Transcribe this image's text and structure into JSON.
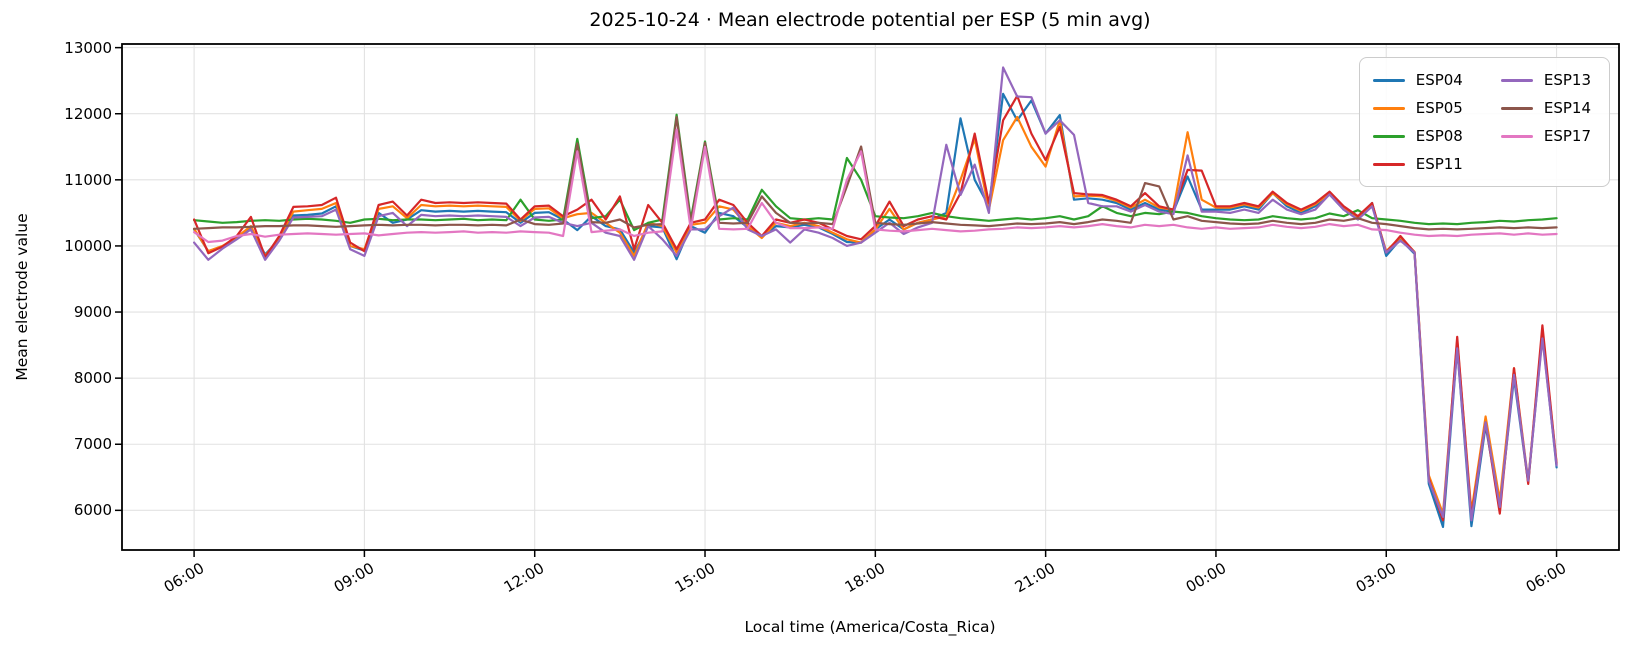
{
  "figure": {
    "title": "2025-10-24 · Mean electrode potential per ESP (5 min avg)",
    "xlabel": "Local time (America/Costa_Rica)",
    "ylabel": "Mean electrode value"
  },
  "chart_data": {
    "type": "line",
    "title": "2025-10-24 · Mean electrode potential per ESP (5 min avg)",
    "xlabel": "Local time (America/Costa_Rica)",
    "ylabel": "Mean electrode value",
    "grid": true,
    "legend_position": "upper right",
    "legend_columns": 2,
    "x_unit": "hours after 06:00 local",
    "x_start_hour": 0,
    "x_step_hours": 0.25,
    "xlim": [
      -1.27,
      25.1
    ],
    "ylim": [
      5400,
      13055
    ],
    "x_ticks": [
      {
        "t": 0,
        "label": "06:00"
      },
      {
        "t": 3,
        "label": "09:00"
      },
      {
        "t": 6,
        "label": "12:00"
      },
      {
        "t": 9,
        "label": "15:00"
      },
      {
        "t": 12,
        "label": "18:00"
      },
      {
        "t": 15,
        "label": "21:00"
      },
      {
        "t": 18,
        "label": "00:00"
      },
      {
        "t": 21,
        "label": "03:00"
      },
      {
        "t": 24,
        "label": "06:00"
      }
    ],
    "y_ticks": [
      6000,
      7000,
      8000,
      9000,
      10000,
      11000,
      12000,
      13000
    ],
    "colors": {
      "grid": "#e2e2e2",
      "spine": "#000000",
      "text": "#000000"
    },
    "series": [
      {
        "name": "ESP04",
        "color": "#1f77b4",
        "values": [
          10250,
          9920,
          9990,
          10120,
          10280,
          9870,
          10100,
          10460,
          10470,
          10490,
          10600,
          10000,
          9930,
          10500,
          10350,
          10400,
          10540,
          10520,
          10530,
          10520,
          10530,
          10520,
          10510,
          10350,
          10500,
          10510,
          10400,
          10240,
          10450,
          10300,
          10250,
          9900,
          10300,
          10280,
          9800,
          10300,
          10200,
          10500,
          10450,
          10280,
          10140,
          10300,
          10280,
          10320,
          10280,
          10180,
          10060,
          10050,
          10250,
          10400,
          10250,
          10350,
          10400,
          10500,
          11930,
          11000,
          10600,
          12300,
          11900,
          12200,
          11700,
          11980,
          10700,
          10720,
          10700,
          10650,
          10550,
          10650,
          10550,
          10520,
          11050,
          10550,
          10550,
          10550,
          10600,
          10550,
          10800,
          10600,
          10500,
          10600,
          10780,
          10550,
          10400,
          10650,
          9850,
          10100,
          9880,
          6400,
          5750,
          8450,
          5760,
          7280,
          6050,
          8000,
          6420,
          8650,
          6650
        ]
      },
      {
        "name": "ESP05",
        "color": "#ff7f0e",
        "values": [
          10260,
          9920,
          10000,
          10130,
          10300,
          9850,
          10120,
          10520,
          10540,
          10560,
          10650,
          10000,
          9950,
          10560,
          10600,
          10420,
          10620,
          10600,
          10610,
          10600,
          10610,
          10600,
          10590,
          10380,
          10560,
          10570,
          10420,
          10480,
          10500,
          10350,
          10200,
          9850,
          10350,
          10300,
          9900,
          10320,
          10350,
          10600,
          10550,
          10300,
          10120,
          10350,
          10300,
          10350,
          10300,
          10200,
          10100,
          10050,
          10250,
          10560,
          10250,
          10350,
          10400,
          10450,
          11000,
          11620,
          10550,
          11600,
          11950,
          11500,
          11200,
          11900,
          10750,
          10760,
          10750,
          10680,
          10580,
          10700,
          10580,
          10550,
          11720,
          10700,
          10580,
          10580,
          10630,
          10580,
          10800,
          10630,
          10530,
          10630,
          10800,
          10580,
          10430,
          10620,
          9920,
          10130,
          9910,
          6530,
          5950,
          8570,
          5980,
          7420,
          6150,
          8150,
          6450,
          8700,
          6720
        ]
      },
      {
        "name": "ESP08",
        "color": "#2ca02c",
        "values": [
          10390,
          10370,
          10350,
          10360,
          10380,
          10390,
          10380,
          10400,
          10410,
          10400,
          10380,
          10350,
          10400,
          10410,
          10390,
          10400,
          10400,
          10390,
          10400,
          10410,
          10390,
          10400,
          10390,
          10700,
          10400,
          10380,
          10400,
          11620,
          10420,
          10450,
          10700,
          10240,
          10350,
          10400,
          11985,
          10400,
          11580,
          10400,
          10420,
          10400,
          10850,
          10600,
          10420,
          10400,
          10420,
          10400,
          11330,
          11000,
          10450,
          10430,
          10420,
          10450,
          10500,
          10450,
          10420,
          10400,
          10380,
          10400,
          10420,
          10400,
          10420,
          10450,
          10400,
          10450,
          10600,
          10500,
          10450,
          10500,
          10480,
          10520,
          10500,
          10450,
          10420,
          10400,
          10390,
          10400,
          10450,
          10420,
          10400,
          10420,
          10490,
          10450,
          10540,
          10420,
          10400,
          10380,
          10350,
          10330,
          10340,
          10330,
          10350,
          10360,
          10380,
          10370,
          10390,
          10400,
          10420
        ]
      },
      {
        "name": "ESP11",
        "color": "#d62728",
        "values": [
          10400,
          9890,
          9990,
          10150,
          10440,
          9830,
          10150,
          10590,
          10600,
          10620,
          10730,
          10050,
          9920,
          10620,
          10670,
          10460,
          10700,
          10650,
          10660,
          10650,
          10660,
          10650,
          10640,
          10400,
          10600,
          10610,
          10450,
          10550,
          10700,
          10400,
          10750,
          9950,
          10620,
          10350,
          9950,
          10350,
          10400,
          10700,
          10620,
          10350,
          10150,
          10400,
          10350,
          10400,
          10350,
          10250,
          10150,
          10100,
          10300,
          10670,
          10300,
          10400,
          10450,
          10400,
          10800,
          11700,
          10650,
          11900,
          12270,
          11700,
          11300,
          11800,
          10800,
          10780,
          10770,
          10700,
          10600,
          10800,
          10600,
          10550,
          11150,
          11140,
          10600,
          10600,
          10650,
          10600,
          10820,
          10650,
          10550,
          10650,
          10820,
          10600,
          10450,
          10650,
          9900,
          10150,
          9900,
          6480,
          5850,
          8625,
          5900,
          7330,
          5950,
          8150,
          6400,
          8800,
          6700
        ]
      },
      {
        "name": "ESP13",
        "color": "#9467bd",
        "values": [
          10050,
          9790,
          9960,
          10100,
          10250,
          9790,
          10080,
          10430,
          10440,
          10450,
          10550,
          9950,
          9850,
          10450,
          10500,
          10300,
          10470,
          10450,
          10460,
          10450,
          10460,
          10450,
          10440,
          10300,
          10430,
          10440,
          10350,
          10300,
          10350,
          10200,
          10150,
          9790,
          10300,
          10100,
          9850,
          10250,
          10250,
          10450,
          10580,
          10250,
          10150,
          10250,
          10050,
          10250,
          10200,
          10120,
          10000,
          10050,
          10200,
          10350,
          10180,
          10280,
          10350,
          11530,
          10770,
          11230,
          10500,
          12700,
          12260,
          12250,
          11700,
          11900,
          11680,
          10650,
          10600,
          10600,
          10520,
          10620,
          10520,
          10480,
          11370,
          10520,
          10520,
          10500,
          10550,
          10500,
          10700,
          10550,
          10480,
          10550,
          10780,
          10550,
          10400,
          10600,
          9900,
          10080,
          9900,
          6450,
          5900,
          8450,
          5850,
          7330,
          6050,
          8050,
          6450,
          8600,
          6680
        ]
      },
      {
        "name": "ESP14",
        "color": "#8c564b",
        "values": [
          10260,
          10270,
          10280,
          10280,
          10290,
          10300,
          10300,
          10310,
          10310,
          10300,
          10290,
          10300,
          10310,
          10320,
          10310,
          10320,
          10320,
          10310,
          10320,
          10320,
          10310,
          10320,
          10310,
          10400,
          10330,
          10320,
          10340,
          11550,
          10360,
          10350,
          10400,
          10280,
          10320,
          10330,
          11950,
          10350,
          11560,
          10350,
          10340,
          10350,
          10750,
          10500,
          10350,
          10340,
          10350,
          10330,
          10900,
          11505,
          10350,
          10330,
          10320,
          10340,
          10360,
          10340,
          10320,
          10310,
          10300,
          10320,
          10340,
          10330,
          10340,
          10360,
          10330,
          10360,
          10400,
          10380,
          10350,
          10950,
          10900,
          10400,
          10450,
          10380,
          10360,
          10340,
          10330,
          10340,
          10380,
          10350,
          10330,
          10350,
          10400,
          10380,
          10420,
          10350,
          10330,
          10300,
          10270,
          10250,
          10260,
          10250,
          10260,
          10270,
          10280,
          10270,
          10280,
          10270,
          10280
        ]
      },
      {
        "name": "ESP17",
        "color": "#e377c2",
        "values": [
          10210,
          10060,
          10080,
          10150,
          10180,
          10140,
          10170,
          10180,
          10190,
          10180,
          10170,
          10180,
          10190,
          10160,
          10180,
          10200,
          10210,
          10200,
          10210,
          10220,
          10200,
          10210,
          10200,
          10220,
          10210,
          10200,
          10150,
          11430,
          10210,
          10230,
          10250,
          10150,
          10200,
          10220,
          11760,
          10250,
          11500,
          10260,
          10250,
          10260,
          10650,
          10350,
          10270,
          10270,
          10280,
          10260,
          11000,
          11430,
          10250,
          10230,
          10220,
          10240,
          10260,
          10240,
          10220,
          10230,
          10250,
          10260,
          10280,
          10270,
          10280,
          10300,
          10280,
          10300,
          10330,
          10300,
          10280,
          10320,
          10300,
          10320,
          10280,
          10260,
          10280,
          10260,
          10270,
          10280,
          10320,
          10290,
          10270,
          10290,
          10330,
          10300,
          10320,
          10250,
          10240,
          10200,
          10170,
          10150,
          10160,
          10150,
          10170,
          10180,
          10190,
          10170,
          10190,
          10170,
          10180
        ]
      }
    ]
  }
}
